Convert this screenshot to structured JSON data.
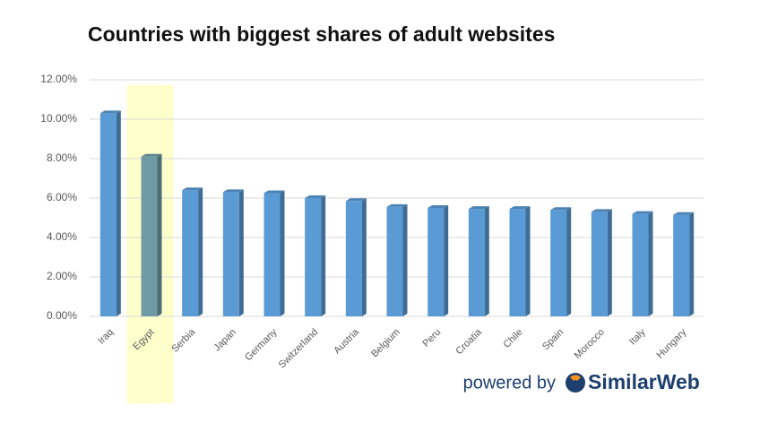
{
  "chart_data": {
    "type": "bar",
    "title": "Countries with biggest shares of adult websites",
    "categories": [
      "Iraq",
      "Egypt",
      "Serbia",
      "Japan",
      "Germany",
      "Switzerland",
      "Austria",
      "Belgium",
      "Peru",
      "Croatia",
      "Chile",
      "Spain",
      "Morocco",
      "Italy",
      "Hungary"
    ],
    "values": [
      10.3,
      8.1,
      6.4,
      6.3,
      6.25,
      6.0,
      5.85,
      5.55,
      5.5,
      5.45,
      5.45,
      5.4,
      5.3,
      5.2,
      5.15
    ],
    "color": "#5b9bd5",
    "highlight_index": 1,
    "highlight_color": "#ffffcc",
    "highlight_bar_color": "#6f9aa6",
    "ylim": [
      0,
      12
    ],
    "yticks": [
      {
        "value": 0,
        "label": "0.00%"
      },
      {
        "value": 2,
        "label": "2.00%"
      },
      {
        "value": 4,
        "label": "4.00%"
      },
      {
        "value": 6,
        "label": "6.00%"
      },
      {
        "value": 8,
        "label": "8.00%"
      },
      {
        "value": 10,
        "label": "10.00%"
      },
      {
        "value": 12,
        "label": "12.00%"
      }
    ],
    "grid": true,
    "footer": {
      "text": "powered by",
      "brand": "SimilarWeb"
    }
  }
}
